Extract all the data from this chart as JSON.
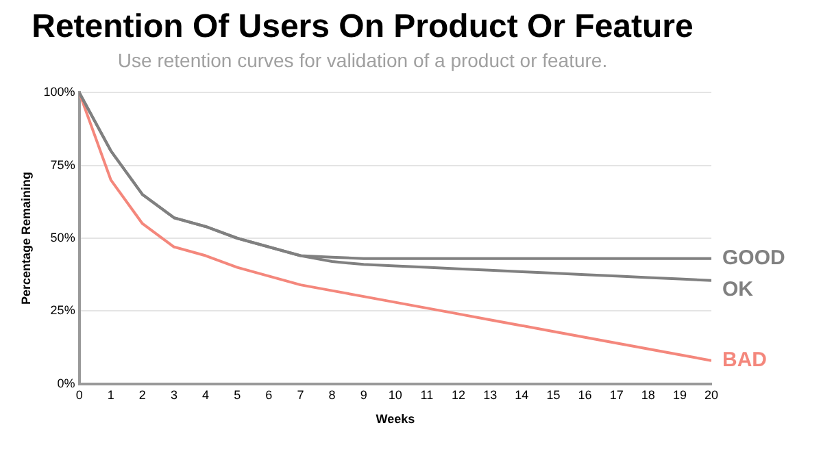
{
  "chart_data": {
    "type": "line",
    "title": "Retention Of Users On Product Or Feature",
    "subtitle": "Use retention curves for validation of a product or feature.",
    "xlabel": "Weeks",
    "ylabel": "Percentage Remaining",
    "x": [
      0,
      1,
      2,
      3,
      4,
      5,
      6,
      7,
      8,
      9,
      10,
      11,
      12,
      13,
      14,
      15,
      16,
      17,
      18,
      19,
      20
    ],
    "series": [
      {
        "name": "GOOD",
        "color": "#808080",
        "values": [
          100,
          80,
          65,
          57,
          54,
          50,
          47,
          44,
          43.5,
          43,
          43,
          43,
          43,
          43,
          43,
          43,
          43,
          43,
          43,
          43,
          43
        ]
      },
      {
        "name": "OK",
        "color": "#808080",
        "values": [
          100,
          80,
          65,
          57,
          54,
          50,
          47,
          44,
          42,
          41,
          40.5,
          40,
          39.5,
          39,
          38.5,
          38,
          37.5,
          37,
          36.5,
          36,
          35.5
        ]
      },
      {
        "name": "BAD",
        "color": "#f4877c",
        "values": [
          100,
          70,
          55,
          47,
          44,
          40,
          37,
          34,
          32,
          30,
          28,
          26,
          24,
          22,
          20,
          18,
          16,
          14,
          12,
          10,
          8
        ]
      }
    ],
    "xlim": [
      0,
      20
    ],
    "xticks": [
      0,
      1,
      2,
      3,
      4,
      5,
      6,
      7,
      8,
      9,
      10,
      11,
      12,
      13,
      14,
      15,
      16,
      17,
      18,
      19,
      20
    ],
    "ylim": [
      0,
      100
    ],
    "yticks": [
      {
        "value": 0,
        "label": "0%"
      },
      {
        "value": 25,
        "label": "25%"
      },
      {
        "value": 50,
        "label": "50%"
      },
      {
        "value": 75,
        "label": "75%"
      },
      {
        "value": 100,
        "label": "100%"
      }
    ],
    "grid": "y",
    "legend": false,
    "marker": "none",
    "line_style": "solid"
  }
}
